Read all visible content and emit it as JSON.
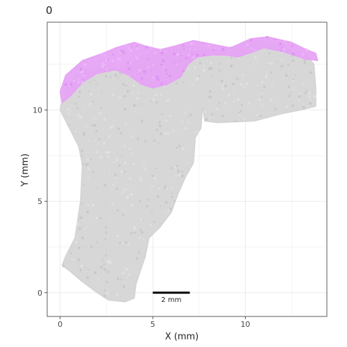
{
  "chart_data": {
    "type": "scatter",
    "panel_title": "0",
    "xlabel": "X (mm)",
    "ylabel": "Y (mm)",
    "xlim": [
      -0.7,
      14.4
    ],
    "ylim": [
      -1.3,
      14.8
    ],
    "x_ticks": [
      0,
      5,
      10
    ],
    "y_ticks": [
      0,
      5,
      10
    ],
    "grid": true,
    "legend": "none",
    "scale_bar": {
      "label": "2 mm",
      "x_start": 5,
      "x_end": 7,
      "y": 0
    },
    "series": [
      {
        "role": "tissue",
        "color": "#d3d3d3",
        "outline": [
          [
            0.1,
            1.5
          ],
          [
            0.5,
            1.2
          ],
          [
            1.2,
            0.6
          ],
          [
            2.0,
            0.0
          ],
          [
            2.6,
            -0.4
          ],
          [
            3.5,
            -0.5
          ],
          [
            4.0,
            -0.3
          ],
          [
            4.1,
            0.5
          ],
          [
            4.6,
            2.0
          ],
          [
            4.8,
            3.0
          ],
          [
            5.4,
            3.6
          ],
          [
            6.0,
            4.4
          ],
          [
            6.4,
            5.5
          ],
          [
            6.8,
            6.4
          ],
          [
            7.2,
            7.1
          ],
          [
            7.3,
            8.5
          ],
          [
            7.6,
            9.0
          ],
          [
            7.7,
            10.2
          ],
          [
            7.8,
            9.4
          ],
          [
            8.5,
            9.3
          ],
          [
            10.5,
            9.4
          ],
          [
            12.0,
            9.8
          ],
          [
            13.0,
            10.0
          ],
          [
            13.8,
            10.2
          ],
          [
            13.8,
            11.2
          ],
          [
            13.7,
            12.5
          ],
          [
            13.3,
            13.0
          ],
          [
            12.0,
            13.5
          ],
          [
            10.5,
            13.9
          ],
          [
            9.5,
            13.5
          ],
          [
            8.6,
            13.3
          ],
          [
            7.5,
            13.4
          ],
          [
            6.8,
            13.5
          ],
          [
            5.7,
            13.3
          ],
          [
            5.3,
            13.3
          ],
          [
            4.5,
            13.0
          ],
          [
            4.0,
            12.7
          ],
          [
            3.2,
            12.2
          ],
          [
            2.0,
            12.3
          ],
          [
            1.3,
            12.2
          ],
          [
            0.9,
            12.0
          ],
          [
            0.2,
            11.0
          ],
          [
            0.0,
            10.0
          ],
          [
            0.5,
            9.0
          ],
          [
            1.0,
            8.0
          ],
          [
            1.2,
            7.0
          ],
          [
            1.1,
            5.0
          ],
          [
            0.8,
            3.0
          ],
          [
            0.3,
            2.0
          ]
        ]
      },
      {
        "role": "highlighted",
        "color": "#e6a3f5",
        "outline": [
          [
            0.0,
            11.0
          ],
          [
            0.3,
            11.9
          ],
          [
            1.2,
            12.7
          ],
          [
            2.3,
            13.1
          ],
          [
            3.0,
            13.4
          ],
          [
            4.0,
            13.7
          ],
          [
            4.6,
            13.5
          ],
          [
            5.4,
            13.3
          ],
          [
            6.2,
            13.5
          ],
          [
            7.2,
            13.8
          ],
          [
            8.2,
            13.6
          ],
          [
            9.2,
            13.4
          ],
          [
            10.3,
            13.9
          ],
          [
            11.2,
            14.0
          ],
          [
            12.5,
            13.7
          ],
          [
            13.3,
            13.3
          ],
          [
            13.8,
            13.1
          ],
          [
            13.9,
            12.7
          ],
          [
            13.2,
            12.8
          ],
          [
            12.0,
            13.2
          ],
          [
            11.0,
            13.4
          ],
          [
            10.2,
            13.1
          ],
          [
            9.6,
            12.9
          ],
          [
            9.0,
            13.0
          ],
          [
            8.2,
            13.0
          ],
          [
            7.4,
            12.9
          ],
          [
            6.9,
            12.5
          ],
          [
            6.5,
            11.8
          ],
          [
            5.8,
            11.4
          ],
          [
            5.0,
            11.2
          ],
          [
            4.4,
            11.4
          ],
          [
            3.7,
            11.9
          ],
          [
            3.0,
            12.2
          ],
          [
            2.0,
            12.0
          ],
          [
            1.2,
            11.5
          ],
          [
            0.6,
            10.8
          ],
          [
            0.1,
            10.4
          ]
        ]
      }
    ]
  }
}
